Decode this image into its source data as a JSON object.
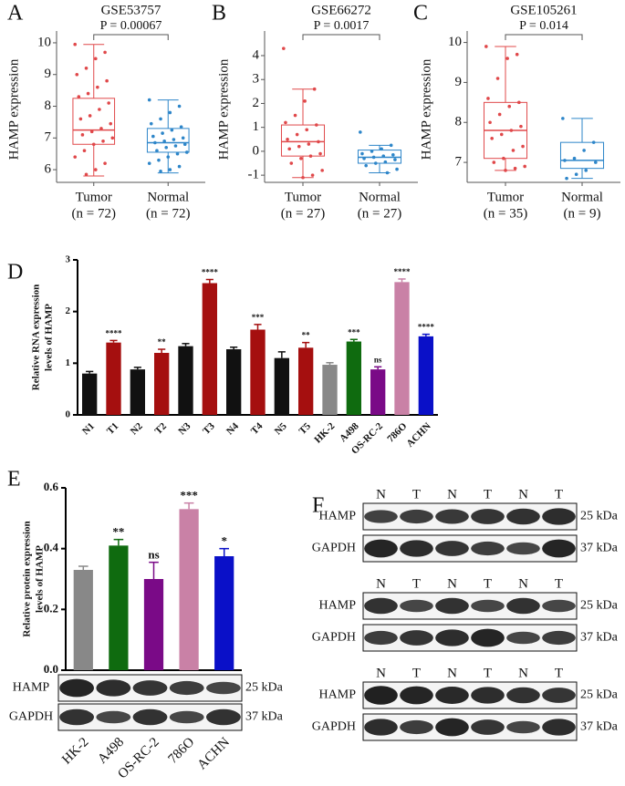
{
  "chart_data": [
    {
      "type": "box",
      "panel": "A",
      "title": "GSE53757",
      "ylabel": "HAMP expression",
      "ylim": [
        5.6,
        10.2
      ],
      "yticks": [
        6,
        7,
        8,
        9,
        10
      ],
      "categories": [
        "Tumor",
        "Normal"
      ],
      "category_notes": [
        "(n = 72)",
        "(n = 72)"
      ],
      "annotation": "P = 0.00067",
      "boxes": [
        {
          "color": "#e0484a",
          "min": 5.8,
          "q1": 6.8,
          "median": 7.25,
          "q3": 8.25,
          "max": 9.95,
          "points": [
            9.95,
            9.7,
            9.5,
            9.2,
            9.0,
            8.8,
            8.6,
            8.4,
            8.3,
            8.1,
            7.9,
            7.7,
            7.6,
            7.45,
            7.3,
            7.2,
            7.1,
            7.0,
            6.9,
            6.8,
            6.6,
            6.4,
            6.2,
            6.0,
            5.85
          ]
        },
        {
          "color": "#2e86c9",
          "min": 5.9,
          "q1": 6.55,
          "median": 6.85,
          "q3": 7.3,
          "max": 8.2,
          "points": [
            8.2,
            8.0,
            7.8,
            7.6,
            7.45,
            7.35,
            7.25,
            7.15,
            7.05,
            7.0,
            6.95,
            6.9,
            6.85,
            6.8,
            6.75,
            6.7,
            6.6,
            6.55,
            6.5,
            6.4,
            6.3,
            6.2,
            6.1,
            6.0,
            5.95
          ]
        }
      ]
    },
    {
      "type": "box",
      "panel": "B",
      "title": "GSE66272",
      "ylabel": "HAMP expression",
      "ylim": [
        -1.3,
        4.8
      ],
      "yticks": [
        -1,
        0,
        1,
        2,
        3,
        4
      ],
      "categories": [
        "Tumor",
        "Normal"
      ],
      "category_notes": [
        "(n = 27)",
        "(n = 27)"
      ],
      "annotation": "P = 0.0017",
      "boxes": [
        {
          "color": "#e0484a",
          "min": -1.1,
          "q1": -0.2,
          "median": 0.4,
          "q3": 1.1,
          "max": 2.6,
          "points": [
            4.3,
            2.6,
            2.1,
            1.5,
            1.2,
            1.1,
            0.9,
            0.7,
            0.5,
            0.4,
            0.3,
            0.2,
            0.1,
            -0.1,
            -0.2,
            -0.3,
            -0.5,
            -0.8,
            -1.0,
            -1.1
          ]
        },
        {
          "color": "#2e86c9",
          "min": -0.9,
          "q1": -0.5,
          "median": -0.25,
          "q3": 0.05,
          "max": 0.25,
          "points": [
            0.8,
            0.25,
            0.1,
            0.0,
            -0.1,
            -0.15,
            -0.2,
            -0.25,
            -0.3,
            -0.35,
            -0.45,
            -0.5,
            -0.6,
            -0.75,
            -0.9
          ]
        }
      ]
    },
    {
      "type": "box",
      "panel": "C",
      "title": "GSE105261",
      "ylabel": "HAMP expression",
      "ylim": [
        6.5,
        10.15
      ],
      "yticks": [
        7,
        8,
        9,
        10
      ],
      "categories": [
        "Tumor",
        "Normal"
      ],
      "category_notes": [
        "(n = 35)",
        "(n = 9)"
      ],
      "annotation": "P = 0.014",
      "boxes": [
        {
          "color": "#e0484a",
          "min": 6.8,
          "q1": 7.1,
          "median": 7.8,
          "q3": 8.5,
          "max": 9.9,
          "points": [
            9.9,
            9.7,
            9.6,
            9.1,
            8.6,
            8.5,
            8.4,
            8.2,
            8.0,
            7.9,
            7.8,
            7.7,
            7.6,
            7.4,
            7.3,
            7.1,
            7.0,
            6.9,
            6.85,
            6.8
          ]
        },
        {
          "color": "#2e86c9",
          "min": 6.6,
          "q1": 6.85,
          "median": 7.05,
          "q3": 7.5,
          "max": 8.1,
          "points": [
            8.1,
            7.5,
            7.3,
            7.1,
            7.05,
            7.0,
            6.8,
            6.7,
            6.6
          ]
        }
      ]
    },
    {
      "type": "bar",
      "panel": "D",
      "ylabel": [
        "Relative RNA expression",
        "levels of HAMP"
      ],
      "ylim": [
        0,
        3
      ],
      "yticks": [
        0,
        1,
        2,
        3
      ],
      "categories": [
        "N1",
        "T1",
        "N2",
        "T2",
        "N3",
        "T3",
        "N4",
        "T4",
        "N5",
        "T5",
        "HK-2",
        "A498",
        "OS-RC-2",
        "786O",
        "ACHN"
      ],
      "values": [
        0.8,
        1.4,
        0.88,
        1.2,
        1.33,
        2.55,
        1.27,
        1.65,
        1.1,
        1.3,
        0.97,
        1.42,
        0.88,
        2.57,
        1.52
      ],
      "errors": [
        0.04,
        0.04,
        0.04,
        0.07,
        0.05,
        0.07,
        0.04,
        0.1,
        0.12,
        0.1,
        0.04,
        0.04,
        0.05,
        0.06,
        0.04
      ],
      "colors": [
        "#111111",
        "#a50f0f",
        "#111111",
        "#a50f0f",
        "#111111",
        "#a50f0f",
        "#111111",
        "#a50f0f",
        "#111111",
        "#a50f0f",
        "#888888",
        "#0f6b0f",
        "#7a0a87",
        "#c981a6",
        "#0a10c8"
      ],
      "annotations": [
        null,
        "****",
        null,
        "**",
        null,
        "****",
        null,
        "***",
        null,
        "**",
        null,
        "***",
        "ns",
        "****",
        "****"
      ]
    },
    {
      "type": "bar",
      "panel": "E",
      "ylabel": [
        "Relative protein expression",
        "levels of HAMP"
      ],
      "ylim": [
        0,
        0.6
      ],
      "yticks": [
        {
          "value": 0,
          "label": "0.0"
        },
        {
          "value": 0.2,
          "label": "0.2"
        },
        {
          "value": 0.4,
          "label": "0.4"
        },
        {
          "value": 0.6,
          "label": "0.6"
        }
      ],
      "categories": [
        "HK-2",
        "A498",
        "OS-RC-2",
        "786O",
        "ACHN"
      ],
      "values": [
        0.33,
        0.41,
        0.3,
        0.53,
        0.375
      ],
      "errors": [
        0.012,
        0.02,
        0.055,
        0.02,
        0.025
      ],
      "colors": [
        "#888888",
        "#0f6b0f",
        "#7a0a87",
        "#c981a6",
        "#0a10c8"
      ],
      "annotations": [
        null,
        "**",
        "ns",
        "***",
        "*"
      ],
      "blot": {
        "rows": [
          {
            "protein": "HAMP",
            "size": "25 kDa"
          },
          {
            "protein": "GAPDH",
            "size": "37 kDa"
          }
        ]
      }
    }
  ],
  "blots": {
    "panel": "F",
    "sets": [
      {
        "lanes": [
          "N",
          "T",
          "N",
          "T",
          "N",
          "T"
        ],
        "rows": [
          {
            "protein": "HAMP",
            "size": "25 kDa"
          },
          {
            "protein": "GAPDH",
            "size": "37 kDa"
          }
        ]
      },
      {
        "lanes": [
          "N",
          "T",
          "N",
          "T",
          "N",
          "T"
        ],
        "rows": [
          {
            "protein": "HAMP",
            "size": "25 kDa"
          },
          {
            "protein": "GAPDH",
            "size": "37 kDa"
          }
        ]
      },
      {
        "lanes": [
          "N",
          "T",
          "N",
          "T",
          "N",
          "T"
        ],
        "rows": [
          {
            "protein": "HAMP",
            "size": "25 kDa"
          },
          {
            "protein": "GAPDH",
            "size": "37 kDa"
          }
        ]
      }
    ]
  }
}
